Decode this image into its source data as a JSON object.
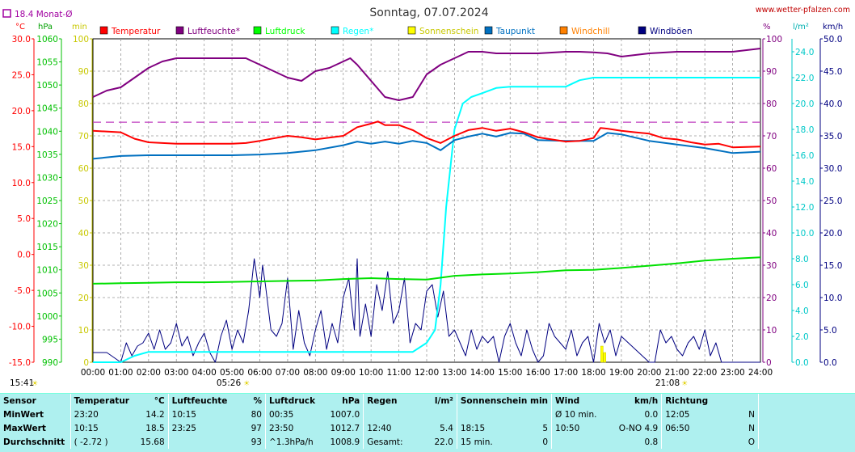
{
  "title": "Sonntag, 07.07.2024",
  "site": "www.wetter-pfalzen.com",
  "month_avg_label": "18.4 Monat-Ø",
  "time_left": "15:41",
  "sunrise_label": "05:26",
  "sunset_label": "21:08",
  "unit_labels": {
    "celsius": "°C",
    "hpa": "hPa",
    "min": "min",
    "percent": "%",
    "lm2": "l/m²",
    "kmh": "km/h"
  },
  "chart_data": {
    "type": "line",
    "x_ticks": [
      "00:00",
      "01:00",
      "02:00",
      "03:00",
      "04:00",
      "05:00",
      "06:00",
      "07:00",
      "08:00",
      "09:00",
      "10:00",
      "11:00",
      "12:00",
      "13:00",
      "14:00",
      "15:00",
      "16:00",
      "17:00",
      "18:00",
      "19:00",
      "20:00",
      "21:00",
      "22:00",
      "23:00",
      "24:00"
    ],
    "xlim": [
      0,
      24
    ],
    "axes": {
      "temp_c": {
        "range": [
          -15,
          30
        ],
        "ticks": [
          "30.0",
          "25.0",
          "20.0",
          "15.0",
          "10.0",
          "5.0",
          "0.0",
          "-5.0",
          "-10.0",
          "-15.0"
        ],
        "color": "#ff0000"
      },
      "pressure_hpa": {
        "range": [
          990,
          1060
        ],
        "ticks": [
          "1060",
          "1055",
          "1050",
          "1045",
          "1040",
          "1035",
          "1030",
          "1025",
          "1020",
          "1015",
          "1010",
          "1005",
          "1000",
          "995",
          "990"
        ],
        "color": "#00c000"
      },
      "sunshine_min": {
        "range": [
          0,
          100
        ],
        "ticks": [
          "100",
          "90",
          "80",
          "70",
          "60",
          "50",
          "40",
          "30",
          "20",
          "10",
          "0"
        ],
        "color": "#c8c800"
      },
      "humidity_pct": {
        "range": [
          0,
          100
        ],
        "ticks": [
          "100",
          "90",
          "80",
          "70",
          "60",
          "50",
          "40",
          "30",
          "20",
          "10",
          "0"
        ],
        "color": "#800080"
      },
      "rain_lm2": {
        "range": [
          0,
          25
        ],
        "ticks": [
          "24.0",
          "22.0",
          "20.0",
          "18.0",
          "16.0",
          "14.0",
          "12.0",
          "10.0",
          "8.0",
          "6.0",
          "4.0",
          "2.0",
          "0.0"
        ],
        "color": "#00c8c8"
      },
      "wind_kmh": {
        "range": [
          0,
          50
        ],
        "ticks": [
          "50.0",
          "45.0",
          "40.0",
          "35.0",
          "30.0",
          "25.0",
          "20.0",
          "15.0",
          "10.0",
          "5.0",
          "0.0"
        ],
        "color": "#000080"
      }
    },
    "month_avg_temp": 18.4,
    "legend": [
      {
        "name": "Temperatur",
        "color": "#ff0000"
      },
      {
        "name": "Luftfeuchte*",
        "color": "#800080"
      },
      {
        "name": "Luftdruck",
        "color": "#00ff00"
      },
      {
        "name": "Regen*",
        "color": "#00ffff"
      },
      {
        "name": "Sonnenschein",
        "color": "#ffff00"
      },
      {
        "name": "Taupunkt",
        "color": "#0070c0"
      },
      {
        "name": "Windchill",
        "color": "#ff8000"
      },
      {
        "name": "Windböen",
        "color": "#000080"
      }
    ],
    "series": [
      {
        "name": "Temperatur",
        "axis": "temp_c",
        "color": "#ff0000",
        "x": [
          0,
          1,
          1.5,
          2,
          3,
          4,
          5,
          5.5,
          6,
          7,
          7.5,
          8,
          9,
          9.5,
          10,
          10.25,
          10.5,
          11,
          11.5,
          12,
          12.5,
          13,
          13.5,
          14,
          14.5,
          15,
          15.5,
          16,
          17,
          17.5,
          18,
          18.25,
          18.5,
          19,
          19.5,
          20,
          20.5,
          21,
          21.5,
          22,
          22.5,
          23,
          24
        ],
        "y": [
          17.2,
          17.0,
          16.1,
          15.6,
          15.4,
          15.4,
          15.4,
          15.5,
          15.8,
          16.5,
          16.3,
          16.0,
          16.5,
          17.7,
          18.2,
          18.5,
          18.0,
          18.0,
          17.3,
          16.2,
          15.5,
          16.5,
          17.3,
          17.6,
          17.2,
          17.5,
          17.0,
          16.3,
          15.7,
          15.8,
          16.2,
          17.6,
          17.5,
          17.2,
          17.0,
          16.8,
          16.2,
          16.0,
          15.6,
          15.3,
          15.4,
          14.9,
          15.0
        ]
      },
      {
        "name": "Taupunkt",
        "axis": "temp_c",
        "color": "#0070c0",
        "x": [
          0,
          1,
          2,
          3,
          4,
          5,
          6,
          7,
          8,
          9,
          9.5,
          10,
          10.5,
          11,
          11.5,
          12,
          12.5,
          13,
          13.5,
          14,
          14.5,
          15,
          15.5,
          16,
          17,
          18,
          18.5,
          19,
          20,
          21,
          22,
          23,
          24
        ],
        "y": [
          13.3,
          13.7,
          13.8,
          13.8,
          13.8,
          13.8,
          13.9,
          14.1,
          14.5,
          15.2,
          15.7,
          15.4,
          15.7,
          15.4,
          15.8,
          15.5,
          14.5,
          15.9,
          16.4,
          16.8,
          16.4,
          16.9,
          16.8,
          15.9,
          15.8,
          15.8,
          16.9,
          16.7,
          15.8,
          15.3,
          14.8,
          14.1,
          14.3
        ]
      },
      {
        "name": "Luftfeuchte*",
        "axis": "humidity_pct",
        "color": "#800080",
        "x": [
          0,
          0.5,
          1,
          1.5,
          2,
          2.5,
          3,
          4,
          5,
          5.5,
          6,
          6.5,
          7,
          7.5,
          8,
          8.5,
          9,
          9.25,
          9.5,
          10,
          10.5,
          11,
          11.5,
          12,
          12.5,
          13,
          13.5,
          14,
          14.5,
          15,
          16,
          17,
          17.5,
          18,
          18.5,
          19,
          20,
          21,
          22,
          23,
          24
        ],
        "y": [
          82,
          84,
          85,
          88,
          91,
          93,
          94,
          94,
          94,
          94,
          92,
          90,
          88,
          87,
          90,
          91,
          93,
          94,
          92,
          87,
          82,
          81,
          82,
          89,
          92,
          94,
          96,
          96,
          95.5,
          95.5,
          95.5,
          96,
          96,
          95.8,
          95.5,
          94.5,
          95.5,
          96,
          96,
          96,
          97
        ]
      },
      {
        "name": "Luftdruck",
        "axis": "pressure_hpa",
        "color": "#00e000",
        "x": [
          0,
          1,
          2,
          3,
          4,
          5,
          6,
          7,
          8,
          9,
          10,
          11,
          12,
          13,
          14,
          15,
          16,
          17,
          18,
          19,
          20,
          21,
          22,
          23,
          24
        ],
        "y": [
          1007.0,
          1007.1,
          1007.2,
          1007.3,
          1007.3,
          1007.4,
          1007.5,
          1007.6,
          1007.7,
          1008.0,
          1008.2,
          1008.0,
          1007.9,
          1008.7,
          1009.0,
          1009.2,
          1009.5,
          1009.9,
          1010.0,
          1010.4,
          1010.9,
          1011.4,
          1012.0,
          1012.4,
          1012.7
        ]
      },
      {
        "name": "Regen*",
        "axis": "rain_lm2",
        "color": "#00ffff",
        "x": [
          0,
          1,
          1.5,
          2,
          11,
          11.5,
          12,
          12.3,
          12.5,
          12.7,
          13,
          13.3,
          13.6,
          14,
          14.5,
          15,
          16,
          16.5,
          17,
          17.5,
          18,
          18.5,
          24
        ],
        "y": [
          0,
          0,
          0.5,
          0.8,
          0.8,
          0.8,
          1.5,
          2.5,
          6,
          12,
          18,
          20,
          20.5,
          20.8,
          21.2,
          21.3,
          21.3,
          21.3,
          21.3,
          21.8,
          22.0,
          22.0,
          22.0
        ]
      },
      {
        "name": "Windböen",
        "axis": "wind_kmh",
        "color": "#000080",
        "x": [
          0,
          0.5,
          1,
          1.2,
          1.4,
          1.6,
          1.8,
          2.0,
          2.2,
          2.4,
          2.6,
          2.8,
          3.0,
          3.2,
          3.4,
          3.6,
          3.8,
          4.0,
          4.2,
          4.4,
          4.6,
          4.8,
          5.0,
          5.2,
          5.4,
          5.6,
          5.8,
          6.0,
          6.1,
          6.2,
          6.4,
          6.6,
          6.8,
          7.0,
          7.2,
          7.4,
          7.6,
          7.8,
          8.0,
          8.2,
          8.4,
          8.6,
          8.8,
          9.0,
          9.2,
          9.4,
          9.5,
          9.6,
          9.8,
          10.0,
          10.2,
          10.4,
          10.6,
          10.8,
          11.0,
          11.2,
          11.4,
          11.6,
          11.8,
          12.0,
          12.2,
          12.4,
          12.6,
          12.8,
          13.0,
          13.2,
          13.4,
          13.6,
          13.8,
          14.0,
          14.2,
          14.4,
          14.6,
          14.8,
          15.0,
          15.2,
          15.4,
          15.6,
          15.8,
          16.0,
          16.2,
          16.4,
          16.6,
          16.8,
          17.0,
          17.2,
          17.4,
          17.6,
          17.8,
          18.0,
          18.2,
          18.4,
          18.6,
          18.8,
          19.0,
          19.5,
          20.0,
          20.2,
          20.4,
          20.6,
          20.8,
          21.0,
          21.2,
          21.4,
          21.6,
          21.8,
          22.0,
          22.2,
          22.4,
          22.6,
          22.8,
          23.0,
          23.2,
          23.4,
          23.6,
          23.8,
          24.0
        ],
        "y": [
          1.5,
          1.5,
          0,
          3,
          1,
          2.5,
          3,
          4.5,
          2,
          5,
          2,
          3,
          6,
          2.5,
          4,
          1,
          3,
          4.5,
          1.5,
          0,
          4,
          6.5,
          2,
          5,
          3,
          8,
          16,
          10,
          15,
          12,
          5,
          4,
          6,
          13,
          2,
          8,
          3,
          1,
          5,
          8,
          2,
          6,
          3,
          10,
          13,
          5,
          16,
          4,
          9,
          4,
          12,
          8,
          14,
          6,
          8,
          13,
          3,
          6,
          5,
          11,
          12,
          7,
          11,
          4,
          5,
          3,
          1,
          5,
          2,
          4,
          3,
          4,
          0,
          4,
          6,
          3,
          1,
          5,
          2,
          0,
          1,
          6,
          4,
          3,
          2,
          5,
          1,
          3,
          4,
          0,
          6,
          3,
          5,
          1,
          4,
          2,
          0,
          0,
          5,
          3,
          4,
          2,
          1,
          3,
          4,
          2,
          5,
          1,
          3,
          0,
          0,
          0,
          0,
          0,
          0,
          0,
          0
        ]
      }
    ],
    "sunshine_bars": [
      {
        "x": 18.3,
        "y": 5
      },
      {
        "x": 18.4,
        "y": 3
      }
    ]
  },
  "stats": {
    "headers": [
      "Sensor",
      "Temperatur",
      "°C",
      "Luftfeuchte",
      "%",
      "Luftdruck",
      "hPa",
      "Regen",
      "l/m²",
      "Sonnenschein min",
      "Wind",
      "km/h",
      "Richtung"
    ],
    "rows": [
      [
        "MinWert",
        "23:20",
        "14.2",
        "10:15",
        "80",
        "00:35",
        "1007.0",
        "",
        "",
        "",
        "Ø 10 min.",
        "0.0",
        "12:05",
        "N"
      ],
      [
        "MaxWert",
        "10:15",
        "18.5",
        "23:25",
        "97",
        "23:50",
        "1012.7",
        "12:40",
        "5.4",
        "18:15",
        "5",
        "10:50",
        "O-NO 4.9",
        "06:50",
        "N"
      ],
      [
        "Durchschnitt",
        "( -2.72 )",
        "15.68",
        "",
        "93",
        "^1.3hPa/h",
        "1008.9",
        "Gesamt:",
        "22.0",
        "15 min.",
        "0",
        "",
        "0.8",
        "",
        "O"
      ]
    ]
  }
}
